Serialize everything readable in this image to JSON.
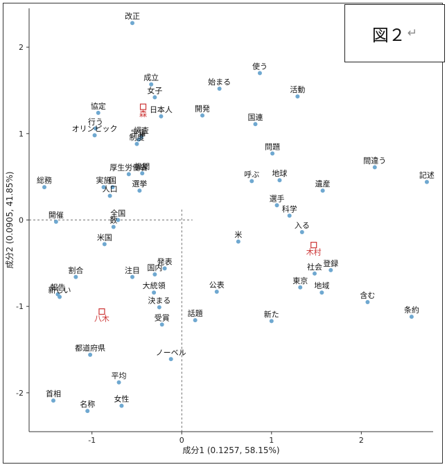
{
  "figure": {
    "label": "図２",
    "mark": "↵"
  },
  "chart_data": {
    "type": "scatter",
    "xlabel": "成分1 (0.1257, 58.15%)",
    "ylabel": "成分2 (0.0905, 41.85%)",
    "xlim": [
      -1.7,
      2.8
    ],
    "ylim": [
      -2.45,
      2.45
    ],
    "xticks": [
      -1,
      0,
      1,
      2
    ],
    "yticks": [
      -2,
      -1,
      0,
      1,
      2
    ],
    "reference_lines": {
      "x": 0,
      "y": 0,
      "style": "dashed"
    },
    "colors": {
      "word": "#6fa8d0",
      "author": "#cc3333"
    },
    "words": [
      {
        "label": "改正",
        "x": -0.55,
        "y": 2.28
      },
      {
        "label": "使う",
        "x": 0.87,
        "y": 1.7
      },
      {
        "label": "成立",
        "x": -0.34,
        "y": 1.57
      },
      {
        "label": "始まる",
        "x": 0.42,
        "y": 1.52
      },
      {
        "label": "女子",
        "x": -0.3,
        "y": 1.42
      },
      {
        "label": "活動",
        "x": 1.29,
        "y": 1.43
      },
      {
        "label": "協定",
        "x": -0.93,
        "y": 1.24
      },
      {
        "label": "開発",
        "x": 0.23,
        "y": 1.21
      },
      {
        "label": "日本人",
        "x": -0.23,
        "y": 1.2
      },
      {
        "label": "国連",
        "x": 0.82,
        "y": 1.11
      },
      {
        "label": "行う",
        "x": -0.96,
        "y": 1.06
      },
      {
        "label": "調査",
        "x": -0.45,
        "y": 0.96
      },
      {
        "label": "オリンピック",
        "x": -0.97,
        "y": 0.98
      },
      {
        "label": "宇宙",
        "x": -0.48,
        "y": 0.93
      },
      {
        "label": "制度",
        "x": -0.5,
        "y": 0.88
      },
      {
        "label": "問題",
        "x": 1.01,
        "y": 0.77
      },
      {
        "label": "間違う",
        "x": 2.15,
        "y": 0.61
      },
      {
        "label": "厚生労働省",
        "x": -0.59,
        "y": 0.53
      },
      {
        "label": "機関",
        "x": -0.44,
        "y": 0.54
      },
      {
        "label": "呼ぶ",
        "x": 0.78,
        "y": 0.45
      },
      {
        "label": "地球",
        "x": 1.09,
        "y": 0.46
      },
      {
        "label": "総務",
        "x": -1.53,
        "y": 0.38
      },
      {
        "label": "実施",
        "x": -0.87,
        "y": 0.38
      },
      {
        "label": "遺産",
        "x": 1.57,
        "y": 0.34
      },
      {
        "label": "記述",
        "x": 2.73,
        "y": 0.44
      },
      {
        "label": "国",
        "x": -0.77,
        "y": 0.38
      },
      {
        "label": "選挙",
        "x": -0.47,
        "y": 0.34
      },
      {
        "label": "人口",
        "x": -0.8,
        "y": 0.28
      },
      {
        "label": "選手",
        "x": 1.06,
        "y": 0.17
      },
      {
        "label": "科学",
        "x": 1.2,
        "y": 0.05
      },
      {
        "label": "全国",
        "x": -0.71,
        "y": 0.0
      },
      {
        "label": "開催",
        "x": -1.4,
        "y": -0.02
      },
      {
        "label": "数",
        "x": -0.76,
        "y": -0.08
      },
      {
        "label": "入る",
        "x": 1.34,
        "y": -0.14
      },
      {
        "label": "米",
        "x": 0.63,
        "y": -0.25
      },
      {
        "label": "米国",
        "x": -0.86,
        "y": -0.28
      },
      {
        "label": "発表",
        "x": -0.19,
        "y": -0.56
      },
      {
        "label": "登録",
        "x": 1.66,
        "y": -0.58
      },
      {
        "label": "割合",
        "x": -1.18,
        "y": -0.66
      },
      {
        "label": "注目",
        "x": -0.55,
        "y": -0.66
      },
      {
        "label": "国内",
        "x": -0.3,
        "y": -0.63
      },
      {
        "label": "社会",
        "x": 1.48,
        "y": -0.62
      },
      {
        "label": "公表",
        "x": 0.39,
        "y": -0.83
      },
      {
        "label": "東京",
        "x": 1.32,
        "y": -0.78
      },
      {
        "label": "報告",
        "x": -1.38,
        "y": -0.86
      },
      {
        "label": "大統領",
        "x": -0.31,
        "y": -0.84
      },
      {
        "label": "地域",
        "x": 1.56,
        "y": -0.84
      },
      {
        "label": "新しい",
        "x": -1.36,
        "y": -0.89
      },
      {
        "label": "含む",
        "x": 2.07,
        "y": -0.95
      },
      {
        "label": "決まる",
        "x": -0.25,
        "y": -1.01
      },
      {
        "label": "新た",
        "x": 1.0,
        "y": -1.17
      },
      {
        "label": "話題",
        "x": 0.15,
        "y": -1.16
      },
      {
        "label": "条約",
        "x": 2.56,
        "y": -1.12
      },
      {
        "label": "受賞",
        "x": -0.22,
        "y": -1.21
      },
      {
        "label": "都道府県",
        "x": -1.02,
        "y": -1.56
      },
      {
        "label": "ノーベル",
        "x": -0.12,
        "y": -1.61
      },
      {
        "label": "平均",
        "x": -0.7,
        "y": -1.88
      },
      {
        "label": "首相",
        "x": -1.43,
        "y": -2.09
      },
      {
        "label": "女性",
        "x": -0.67,
        "y": -2.15
      },
      {
        "label": "名称",
        "x": -1.05,
        "y": -2.21
      }
    ],
    "authors": [
      {
        "label": "森",
        "x": -0.43,
        "y": 1.31
      },
      {
        "label": "木村",
        "x": 1.47,
        "y": -0.29
      },
      {
        "label": "八木",
        "x": -0.89,
        "y": -1.06
      }
    ]
  }
}
